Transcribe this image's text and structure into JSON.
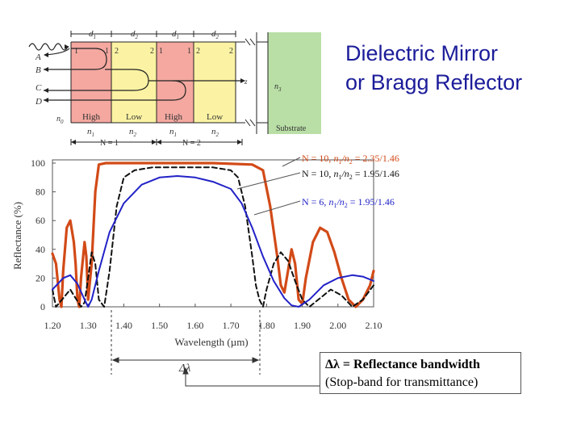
{
  "title": {
    "line1": "Dielectric Mirror",
    "line2": "or Bragg Reflector"
  },
  "diagram": {
    "d_labels": [
      "d",
      "d",
      "d",
      "d"
    ],
    "d_subs": [
      "1",
      "2",
      "1",
      "2"
    ],
    "interfaces": [
      "1",
      "1",
      "2",
      "2",
      "1",
      "1",
      "2",
      "2"
    ],
    "rays": [
      "A",
      "B",
      "C",
      "D"
    ],
    "n0": "n",
    "n0_sub": "0",
    "z": "z",
    "n3": "n",
    "n3_sub": "3",
    "layer_names": [
      "High",
      "Low",
      "High",
      "Low"
    ],
    "layer_n": [
      "n",
      "n",
      "n",
      "n"
    ],
    "layer_n_subs": [
      "1",
      "2",
      "1",
      "2"
    ],
    "substrate": "Substrate",
    "period_labels": [
      "N = 1",
      "N = 2"
    ],
    "colors": {
      "high": "#f4a8a0",
      "low": "#fbf3a3",
      "substrate": "#b9dfa6"
    }
  },
  "chart_data": {
    "type": "line",
    "xlabel": "Wavelength (µm)",
    "ylabel": "Reflectance (%)",
    "xlim": [
      1.2,
      2.1
    ],
    "ylim": [
      0,
      100
    ],
    "xticks": [
      "1.20",
      "1.30",
      "1.40",
      "1.50",
      "1.60",
      "1.70",
      "1.80",
      "1.90",
      "2.00",
      "2.10"
    ],
    "yticks": [
      "0",
      "20",
      "40",
      "60",
      "80",
      "100"
    ],
    "series": [
      {
        "name": "N = 10, n1/n2 = 2.35/1.46",
        "color": "#d24a17",
        "style": "solid",
        "points": [
          [
            1.2,
            37
          ],
          [
            1.21,
            30
          ],
          [
            1.22,
            5
          ],
          [
            1.225,
            0
          ],
          [
            1.23,
            25
          ],
          [
            1.24,
            55
          ],
          [
            1.25,
            60
          ],
          [
            1.26,
            45
          ],
          [
            1.265,
            30
          ],
          [
            1.27,
            5
          ],
          [
            1.275,
            0
          ],
          [
            1.28,
            20
          ],
          [
            1.29,
            45
          ],
          [
            1.295,
            35
          ],
          [
            1.3,
            5
          ],
          [
            1.31,
            30
          ],
          [
            1.32,
            80
          ],
          [
            1.33,
            99
          ],
          [
            1.35,
            100
          ],
          [
            1.45,
            100
          ],
          [
            1.55,
            100
          ],
          [
            1.65,
            100
          ],
          [
            1.76,
            99
          ],
          [
            1.79,
            95
          ],
          [
            1.81,
            70
          ],
          [
            1.83,
            35
          ],
          [
            1.84,
            15
          ],
          [
            1.85,
            10
          ],
          [
            1.86,
            25
          ],
          [
            1.87,
            40
          ],
          [
            1.88,
            30
          ],
          [
            1.89,
            5
          ],
          [
            1.9,
            2
          ],
          [
            1.91,
            20
          ],
          [
            1.93,
            45
          ],
          [
            1.95,
            55
          ],
          [
            1.97,
            52
          ],
          [
            1.99,
            38
          ],
          [
            2.01,
            20
          ],
          [
            2.03,
            5
          ],
          [
            2.05,
            0
          ],
          [
            2.07,
            5
          ],
          [
            2.09,
            15
          ],
          [
            2.1,
            25
          ]
        ]
      },
      {
        "name": "N = 10, n1/n2 = 1.95/1.46",
        "color": "#111111",
        "style": "dashed",
        "points": [
          [
            1.2,
            12
          ],
          [
            1.21,
            0
          ],
          [
            1.23,
            6
          ],
          [
            1.25,
            12
          ],
          [
            1.26,
            8
          ],
          [
            1.28,
            0
          ],
          [
            1.29,
            3
          ],
          [
            1.3,
            20
          ],
          [
            1.31,
            38
          ],
          [
            1.32,
            30
          ],
          [
            1.33,
            5
          ],
          [
            1.345,
            0
          ],
          [
            1.36,
            25
          ],
          [
            1.38,
            70
          ],
          [
            1.4,
            90
          ],
          [
            1.43,
            95
          ],
          [
            1.48,
            97
          ],
          [
            1.55,
            97
          ],
          [
            1.65,
            97
          ],
          [
            1.7,
            95
          ],
          [
            1.72,
            90
          ],
          [
            1.74,
            70
          ],
          [
            1.76,
            35
          ],
          [
            1.77,
            15
          ],
          [
            1.78,
            5
          ],
          [
            1.79,
            0
          ],
          [
            1.8,
            12
          ],
          [
            1.82,
            30
          ],
          [
            1.84,
            38
          ],
          [
            1.86,
            32
          ],
          [
            1.88,
            18
          ],
          [
            1.9,
            5
          ],
          [
            1.92,
            0
          ],
          [
            1.95,
            6
          ],
          [
            1.98,
            12
          ],
          [
            2.01,
            8
          ],
          [
            2.04,
            0
          ],
          [
            2.07,
            5
          ],
          [
            2.1,
            15
          ]
        ]
      },
      {
        "name": "N = 6, n1/n2 = 1.95/1.46",
        "color": "#2222c8",
        "style": "solid",
        "points": [
          [
            1.2,
            12
          ],
          [
            1.23,
            20
          ],
          [
            1.25,
            22
          ],
          [
            1.27,
            16
          ],
          [
            1.29,
            5
          ],
          [
            1.3,
            0
          ],
          [
            1.31,
            5
          ],
          [
            1.33,
            25
          ],
          [
            1.36,
            52
          ],
          [
            1.4,
            72
          ],
          [
            1.45,
            85
          ],
          [
            1.5,
            90
          ],
          [
            1.55,
            91
          ],
          [
            1.6,
            90
          ],
          [
            1.65,
            87
          ],
          [
            1.7,
            82
          ],
          [
            1.73,
            72
          ],
          [
            1.76,
            55
          ],
          [
            1.79,
            35
          ],
          [
            1.82,
            18
          ],
          [
            1.85,
            6
          ],
          [
            1.87,
            1
          ],
          [
            1.89,
            0
          ],
          [
            1.92,
            5
          ],
          [
            1.96,
            15
          ],
          [
            2.0,
            20
          ],
          [
            2.04,
            22
          ],
          [
            2.07,
            21
          ],
          [
            2.1,
            18
          ]
        ]
      }
    ],
    "legend": [
      {
        "prefix": "N = 10, ",
        "n": "n",
        "s1": "1",
        "slash": "/n",
        "s2": "2",
        "value": " = 2.35/1.46",
        "color": "#d24a17"
      },
      {
        "prefix": "N = 10, ",
        "n": "n",
        "s1": "1",
        "slash": "/n",
        "s2": "2",
        "value": " = 1.95/1.46",
        "color": "#111111"
      },
      {
        "prefix": "N = 6, ",
        "n": "n",
        "s1": "1",
        "slash": "/n",
        "s2": "2",
        "value": " = 1.95/1.46",
        "color": "#2222c8"
      }
    ],
    "bandwidth_symbol": "Δλ"
  },
  "note": {
    "bold": "Δλ = Reflectance bandwidth",
    "rest": "(Stop-band for transmittance)"
  }
}
